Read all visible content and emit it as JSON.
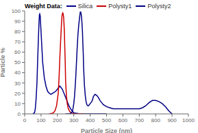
{
  "chart_data": {
    "type": "line",
    "title": "Weight Data:",
    "xlabel": "Particle Size (nm)",
    "ylabel": "Particle %",
    "xlim": [
      0,
      1000
    ],
    "ylim": [
      0,
      100
    ],
    "xticks": [
      0,
      100,
      200,
      300,
      400,
      500,
      600,
      700,
      800,
      900,
      1000
    ],
    "yticks": [
      0,
      10,
      20,
      30,
      40,
      50,
      60,
      70,
      80,
      90,
      100
    ],
    "legend": "top",
    "series": [
      {
        "name": "Silica",
        "color": "#00008B",
        "x": [
          50,
          60,
          65,
          70,
          75,
          80,
          85,
          88,
          90,
          92,
          95,
          100,
          110,
          120,
          130,
          140,
          150,
          160,
          170,
          180,
          190,
          200,
          210,
          215,
          220,
          230,
          240,
          250,
          260,
          270,
          280,
          290,
          300,
          320,
          340,
          360,
          380,
          400,
          450,
          500
        ],
        "values": [
          0,
          1,
          5,
          15,
          30,
          55,
          78,
          90,
          96,
          97,
          95,
          80,
          50,
          35,
          27,
          22,
          20,
          19,
          20,
          21,
          22,
          24,
          26,
          27,
          26,
          24,
          20,
          16,
          12,
          8,
          5,
          3,
          1,
          0.5,
          0,
          0,
          0,
          0,
          0,
          0
        ]
      },
      {
        "name": "Polysty1",
        "color": "#CC0000",
        "x": [
          150,
          165,
          175,
          185,
          195,
          205,
          210,
          215,
          220,
          225,
          228,
          230,
          233,
          235,
          238,
          240,
          243,
          245,
          248,
          250,
          255,
          260,
          265,
          270,
          275,
          280,
          285,
          290,
          300,
          320,
          340,
          360
        ],
        "values": [
          0,
          0.5,
          1,
          3,
          8,
          20,
          35,
          55,
          72,
          88,
          95,
          97,
          98,
          97,
          94,
          88,
          78,
          65,
          48,
          32,
          18,
          10,
          6,
          4,
          2.5,
          1.5,
          1,
          0.5,
          0.2,
          0,
          0,
          0
        ]
      },
      {
        "name": "Polysty2",
        "color": "#000080",
        "x": [
          250,
          270,
          280,
          290,
          295,
          300,
          305,
          310,
          315,
          320,
          325,
          330,
          335,
          338,
          340,
          342,
          345,
          348,
          350,
          353,
          355,
          358,
          360,
          365,
          370,
          375,
          380,
          385,
          390,
          395,
          400,
          405,
          410,
          415,
          420,
          430,
          440,
          450,
          460,
          470,
          480,
          490,
          500,
          520,
          540,
          560,
          580,
          600,
          620,
          640,
          660,
          680,
          700,
          720,
          740,
          760,
          780,
          800,
          820,
          840,
          860,
          880,
          900
        ],
        "values": [
          0,
          0,
          0.5,
          2,
          5,
          10,
          18,
          30,
          45,
          62,
          76,
          86,
          93,
          97,
          99,
          99,
          97,
          93,
          88,
          80,
          70,
          58,
          45,
          28,
          18,
          12,
          9,
          8,
          8,
          9,
          10,
          11,
          12,
          14,
          17,
          19,
          18,
          16,
          13,
          11,
          9,
          8,
          7,
          6,
          5,
          5,
          5,
          5,
          5,
          5,
          5,
          5,
          5,
          6,
          8,
          11,
          13,
          13,
          12,
          10,
          7,
          3,
          0
        ]
      }
    ]
  }
}
